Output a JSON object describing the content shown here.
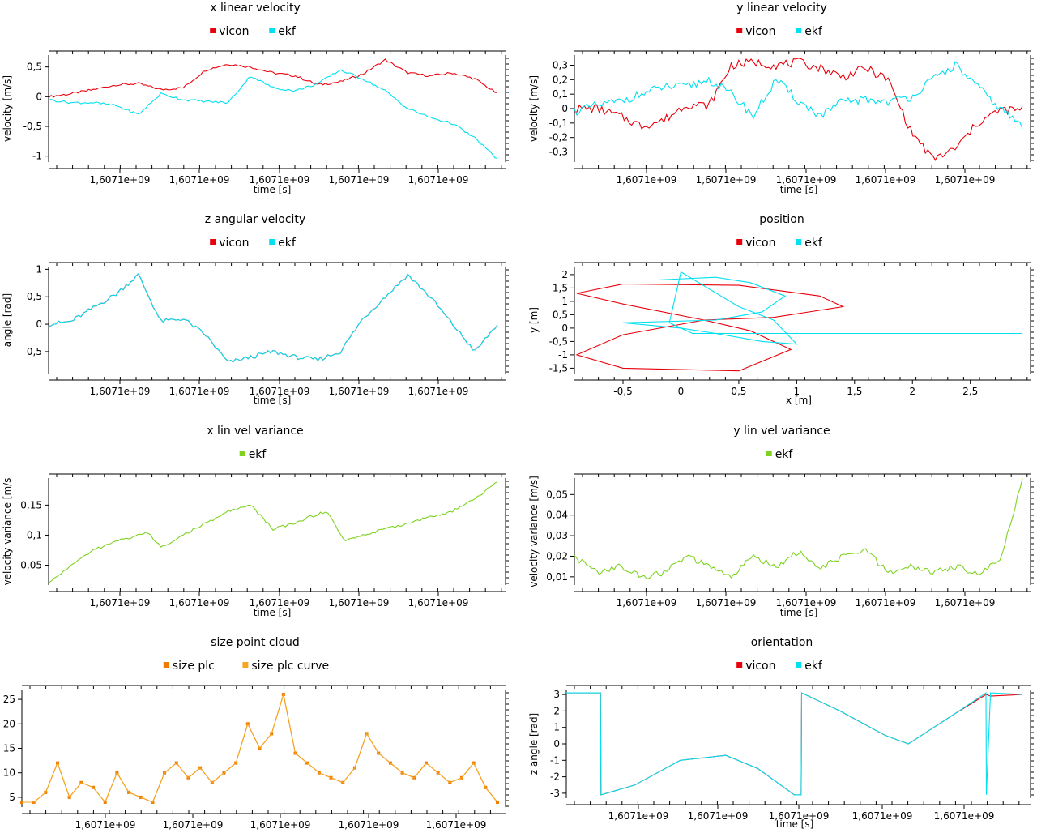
{
  "charts": [
    {
      "id": "x-linear-velocity",
      "chart_data": {
        "type": "line",
        "title": "x linear velocity",
        "xlabel": "time [s]",
        "ylabel": "velocity [m/s]",
        "x_tick_labels": [
          "1,6071e+09",
          "1,6071e+09",
          "1,6071e+09",
          "1,6071e+09",
          "1,6071e+09"
        ],
        "x": [
          0,
          0.05,
          0.1,
          0.15,
          0.2,
          0.25,
          0.3,
          0.35,
          0.4,
          0.45,
          0.5,
          0.55,
          0.6,
          0.65,
          0.7,
          0.75,
          0.8,
          0.85,
          0.9,
          0.95,
          1
        ],
        "series": [
          {
            "name": "vicon",
            "color": "#e8000b",
            "values": [
              0.0,
              0.05,
              0.12,
              0.2,
              0.22,
              0.12,
              0.15,
              0.45,
              0.55,
              0.5,
              0.4,
              0.35,
              0.2,
              0.25,
              0.38,
              0.62,
              0.4,
              0.35,
              0.4,
              0.3,
              0.05
            ]
          },
          {
            "name": "ekf",
            "color": "#00e0f0",
            "values": [
              -0.05,
              -0.1,
              -0.1,
              -0.15,
              -0.3,
              0.05,
              -0.05,
              -0.08,
              -0.1,
              0.35,
              0.15,
              0.1,
              0.22,
              0.45,
              0.3,
              0.1,
              -0.2,
              -0.35,
              -0.45,
              -0.7,
              -1.05
            ]
          }
        ],
        "ylim": [
          -1.1,
          0.7
        ],
        "y_ticks": [
          -1,
          -0.5,
          0,
          0.5
        ],
        "y_tick_labels": [
          "-1",
          "-0,5",
          "0",
          "0,5"
        ],
        "legend": "top-center"
      }
    },
    {
      "id": "y-linear-velocity",
      "chart_data": {
        "type": "line",
        "title": "y linear velocity",
        "xlabel": "time [s]",
        "ylabel": "velocity [m/s]",
        "x_tick_labels": [
          "1,6071e+09",
          "1,6071e+09",
          "1,6071e+09",
          "1,6071e+09",
          "1,6071e+09"
        ],
        "x": [
          0,
          0.05,
          0.1,
          0.15,
          0.2,
          0.25,
          0.3,
          0.35,
          0.4,
          0.45,
          0.5,
          0.55,
          0.6,
          0.65,
          0.7,
          0.75,
          0.8,
          0.85,
          0.9,
          0.95,
          1
        ],
        "series": [
          {
            "name": "vicon",
            "color": "#e8000b",
            "values": [
              0.0,
              0.0,
              -0.05,
              -0.12,
              -0.08,
              0.03,
              0.02,
              0.3,
              0.32,
              0.3,
              0.32,
              0.28,
              0.22,
              0.28,
              0.2,
              -0.15,
              -0.35,
              -0.28,
              -0.1,
              -0.01,
              -0.01
            ]
          },
          {
            "name": "ekf",
            "color": "#00e0f0",
            "values": [
              -0.02,
              0.02,
              0.05,
              0.1,
              0.15,
              0.15,
              0.2,
              0.1,
              -0.05,
              0.2,
              0.05,
              -0.05,
              0.05,
              0.06,
              0.05,
              0.08,
              0.2,
              0.3,
              0.15,
              0.0,
              -0.12
            ]
          }
        ],
        "ylim": [
          -0.37,
          0.37
        ],
        "y_ticks": [
          -0.3,
          -0.2,
          -0.1,
          0,
          0.1,
          0.2,
          0.3
        ],
        "y_tick_labels": [
          "-0,3",
          "-0,2",
          "-0,1",
          "0",
          "0,1",
          "0,2",
          "0,3"
        ],
        "legend": "top-center"
      }
    },
    {
      "id": "z-angular-velocity",
      "chart_data": {
        "type": "line",
        "title": "z angular velocity",
        "xlabel": "time [s]",
        "ylabel": "angle [rad]",
        "x_tick_labels": [
          "1,6071e+09",
          "1,6071e+09",
          "1,6071e+09",
          "1,6071e+09",
          "1,6071e+09"
        ],
        "x": [
          0,
          0.05,
          0.1,
          0.15,
          0.2,
          0.25,
          0.3,
          0.35,
          0.4,
          0.45,
          0.5,
          0.55,
          0.6,
          0.65,
          0.7,
          0.75,
          0.8,
          0.85,
          0.9,
          0.95,
          1
        ],
        "series": [
          {
            "name": "vicon",
            "color": "#e8000b",
            "values": [
              0.0,
              0.05,
              0.3,
              0.55,
              0.9,
              0.05,
              0.1,
              -0.2,
              -0.7,
              -0.6,
              -0.5,
              -0.6,
              -0.65,
              -0.5,
              0.1,
              0.5,
              0.9,
              0.5,
              0.0,
              -0.5,
              0.0
            ]
          },
          {
            "name": "ekf",
            "color": "#00e0f0",
            "values": [
              0.0,
              0.05,
              0.3,
              0.55,
              0.9,
              0.05,
              0.1,
              -0.2,
              -0.7,
              -0.6,
              -0.5,
              -0.6,
              -0.65,
              -0.5,
              0.1,
              0.5,
              0.9,
              0.5,
              0.0,
              -0.5,
              0.0
            ]
          }
        ],
        "ylim": [
          -0.9,
          1.05
        ],
        "y_ticks": [
          -0.5,
          0,
          0.5,
          1
        ],
        "y_tick_labels": [
          "-0,5",
          "0",
          "0,5",
          "1"
        ],
        "legend": "top-center"
      }
    },
    {
      "id": "position",
      "chart_data": {
        "type": "line",
        "title": "position",
        "xlabel": "x [m]",
        "ylabel": "y [m]",
        "xlim": [
          -0.92,
          2.95
        ],
        "x_ticks": [
          -0.5,
          0,
          0.5,
          1,
          1.5,
          2,
          2.5
        ],
        "x_tick_labels": [
          "-0,5",
          "0",
          "0,5",
          "1",
          "1,5",
          "2",
          "2,5"
        ],
        "ylim": [
          -1.7,
          2.3
        ],
        "y_ticks": [
          -1.5,
          -1,
          -0.5,
          0,
          0.5,
          1,
          1.5,
          2
        ],
        "y_tick_labels": [
          "-1,5",
          "-1",
          "-0,5",
          "0",
          "0,5",
          "1",
          "1,5",
          "2"
        ],
        "series": [
          {
            "name": "vicon",
            "color": "#e8000b",
            "x": [
              0.2,
              -0.5,
              -0.9,
              -0.5,
              0.5,
              1.2,
              1.4,
              0.8,
              0.2,
              -0.5,
              -0.9,
              -0.5,
              0.5,
              0.95,
              0.6,
              0.2
            ],
            "y": [
              0.3,
              0.9,
              1.3,
              1.65,
              1.6,
              1.2,
              0.8,
              0.4,
              0.3,
              -0.25,
              -1.0,
              -1.5,
              -1.6,
              -0.8,
              -0.1,
              0.3
            ]
          },
          {
            "name": "ekf",
            "color": "#00e0f0",
            "x": [
              -0.2,
              0.3,
              0.6,
              0.9,
              0.7,
              0.3,
              -0.5,
              0.0,
              0.3,
              0.7,
              1.0,
              0.8,
              0.5,
              0.0,
              -0.1,
              0.1,
              1.0,
              1.5,
              2.0,
              2.5,
              2.95
            ],
            "y": [
              1.8,
              1.9,
              1.7,
              1.2,
              0.6,
              0.3,
              0.2,
              0.0,
              -0.2,
              -0.5,
              -0.6,
              0.3,
              0.8,
              2.1,
              0.2,
              -0.2,
              -0.2,
              -0.2,
              -0.2,
              -0.2,
              -0.2
            ]
          }
        ],
        "legend": "top-center"
      }
    },
    {
      "id": "x-lin-vel-variance",
      "chart_data": {
        "type": "line",
        "title": "x lin vel variance",
        "xlabel": "time [s]",
        "ylabel": "velocity variance [m/s",
        "x_tick_labels": [
          "1,6071e+09",
          "1,6071e+09",
          "1,6071e+09",
          "1,6071e+09",
          "1,6071e+09"
        ],
        "x": [
          0,
          0.05,
          0.1,
          0.15,
          0.2,
          0.22,
          0.25,
          0.3,
          0.35,
          0.38,
          0.4,
          0.45,
          0.5,
          0.55,
          0.58,
          0.62,
          0.66,
          0.7,
          0.75,
          0.8,
          0.85,
          0.9,
          0.95,
          1
        ],
        "series": [
          {
            "name": "ekf",
            "color": "#7ed321",
            "values": [
              0.02,
              0.05,
              0.075,
              0.09,
              0.1,
              0.105,
              0.08,
              0.1,
              0.12,
              0.13,
              0.14,
              0.15,
              0.11,
              0.12,
              0.13,
              0.14,
              0.09,
              0.1,
              0.11,
              0.12,
              0.13,
              0.14,
              0.16,
              0.19
            ]
          }
        ],
        "ylim": [
          0.017,
          0.195
        ],
        "y_ticks": [
          0.05,
          0.1,
          0.15
        ],
        "y_tick_labels": [
          "0,05",
          "0,1",
          "0,15"
        ],
        "legend": "top-center"
      }
    },
    {
      "id": "y-lin-vel-variance",
      "chart_data": {
        "type": "line",
        "title": "y lin vel variance",
        "xlabel": "time [s]",
        "ylabel": "velocity variance [m/s]",
        "x_tick_labels": [
          "1,6071e+09",
          "1,6071e+09",
          "1,6071e+09",
          "1,6071e+09",
          "1,6071e+09"
        ],
        "x": [
          0,
          0.05,
          0.1,
          0.15,
          0.2,
          0.25,
          0.3,
          0.35,
          0.4,
          0.45,
          0.5,
          0.55,
          0.6,
          0.65,
          0.7,
          0.75,
          0.8,
          0.85,
          0.9,
          0.95,
          1
        ],
        "series": [
          {
            "name": "ekf",
            "color": "#7ed321",
            "values": [
              0.02,
              0.012,
              0.015,
              0.01,
              0.012,
              0.02,
              0.015,
              0.01,
              0.02,
              0.015,
              0.022,
              0.014,
              0.02,
              0.023,
              0.012,
              0.015,
              0.012,
              0.015,
              0.012,
              0.018,
              0.057
            ]
          }
        ],
        "ylim": [
          0.006,
          0.058
        ],
        "y_ticks": [
          0.01,
          0.02,
          0.03,
          0.04,
          0.05
        ],
        "y_tick_labels": [
          "0,01",
          "0,02",
          "0,03",
          "0,04",
          "0,05"
        ],
        "legend": "top-center"
      }
    },
    {
      "id": "size-point-cloud",
      "chart_data": {
        "type": "line",
        "title": "size point cloud",
        "xlabel": "",
        "ylabel": "",
        "x_tick_labels": [
          "1,6071e+09",
          "1,6071e+09",
          "1,6071e+09",
          "1,6071e+09",
          "1,6071e+09"
        ],
        "x": [
          0,
          0.025,
          0.05,
          0.075,
          0.1,
          0.125,
          0.15,
          0.175,
          0.2,
          0.225,
          0.25,
          0.275,
          0.3,
          0.325,
          0.35,
          0.375,
          0.4,
          0.425,
          0.45,
          0.475,
          0.5,
          0.525,
          0.55,
          0.575,
          0.6,
          0.625,
          0.65,
          0.675,
          0.7,
          0.725,
          0.75,
          0.775,
          0.8,
          0.825,
          0.85,
          0.875,
          0.9,
          0.925,
          0.95,
          0.975,
          1
        ],
        "series": [
          {
            "name": "size plc",
            "color": "#f07b00",
            "values": [
              4,
              4,
              6,
              12,
              5,
              8,
              7,
              4,
              10,
              6,
              5,
              4,
              10,
              12,
              9,
              11,
              8,
              10,
              12,
              20,
              15,
              18,
              26,
              14,
              12,
              10,
              9,
              8,
              11,
              18,
              14,
              12,
              10,
              9,
              12,
              10,
              8,
              9,
              12,
              7,
              4
            ]
          },
          {
            "name": "size plc curve",
            "color": "#f5a623",
            "values": [
              4,
              4,
              6,
              12,
              5,
              8,
              7,
              4,
              10,
              6,
              5,
              4,
              10,
              12,
              9,
              11,
              8,
              10,
              12,
              20,
              15,
              18,
              26,
              14,
              12,
              10,
              9,
              8,
              11,
              18,
              14,
              12,
              10,
              9,
              12,
              10,
              8,
              9,
              12,
              7,
              4
            ]
          }
        ],
        "ylim": [
          3,
          27
        ],
        "y_ticks": [
          5,
          10,
          15,
          20,
          25
        ],
        "y_tick_labels": [
          "5",
          "10",
          "15",
          "20",
          "25"
        ],
        "legend": "top-center"
      }
    },
    {
      "id": "orientation",
      "chart_data": {
        "type": "line",
        "title": "orientation",
        "xlabel": "time [s]",
        "ylabel": "z angle [rad]",
        "x_tick_labels": [
          "1,6071e+09",
          "1,6071e+09",
          "1,6071e+09",
          "1,6071e+09",
          "1,6071e+09"
        ],
        "x": [
          0,
          0.075,
          0.076,
          0.15,
          0.25,
          0.35,
          0.42,
          0.5,
          0.515,
          0.516,
          0.6,
          0.7,
          0.75,
          0.85,
          0.92,
          0.921,
          0.93,
          1
        ],
        "series": [
          {
            "name": "vicon",
            "color": "#e8000b",
            "values": [
              3.1,
              3.1,
              -3.1,
              -2.5,
              -1.0,
              -0.7,
              -1.5,
              -3.1,
              -3.1,
              3.1,
              2.0,
              0.5,
              0.0,
              1.8,
              3.0,
              3.0,
              2.9,
              3.0
            ]
          },
          {
            "name": "ekf",
            "color": "#00e0f0",
            "values": [
              3.1,
              3.1,
              -3.1,
              -2.5,
              -1.0,
              -0.7,
              -1.5,
              -3.1,
              -3.1,
              3.1,
              2.0,
              0.5,
              0.0,
              1.8,
              3.1,
              -3.1,
              3.1,
              3.0
            ]
          }
        ],
        "ylim": [
          -3.3,
          3.3
        ],
        "y_ticks": [
          -3,
          -2,
          -1,
          0,
          1,
          2,
          3
        ],
        "y_tick_labels": [
          "-3",
          "-2",
          "-1",
          "0",
          "1",
          "2",
          "3"
        ],
        "legend": "top-center"
      }
    }
  ]
}
